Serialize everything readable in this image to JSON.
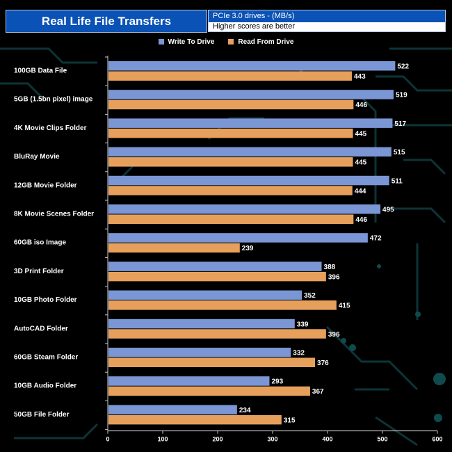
{
  "header": {
    "title": "Real Life File Transfers",
    "subtitle": "PCIe 3.0 drives - (MB/s)",
    "note": "Higher scores are better"
  },
  "colors": {
    "background": "#000000",
    "header_blue": "#0a52b5",
    "write": "#7b96d4",
    "read": "#e6a05c",
    "text": "#ffffff",
    "circuit": "#0f3a3e"
  },
  "chart_data": {
    "type": "bar",
    "orientation": "horizontal",
    "title": "Real Life File Transfers",
    "xlabel": "",
    "ylabel": "",
    "xlim": [
      0,
      600
    ],
    "ticks": [
      0,
      100,
      200,
      300,
      400,
      500,
      600
    ],
    "legend_position": "top-center",
    "categories": [
      "100GB Data File",
      "5GB (1.5bn pixel) image",
      "4K Movie Clips Folder",
      "BluRay Movie",
      "12GB Movie Folder",
      "8K Movie Scenes Folder",
      "60GB iso Image",
      "3D Print Folder",
      "10GB Photo Folder",
      "AutoCAD Folder",
      "60GB Steam Folder",
      "10GB Audio Folder",
      "50GB File Folder"
    ],
    "series": [
      {
        "name": "Write To  Drive",
        "color": "#7b96d4",
        "values": [
          522,
          519,
          517,
          515,
          511,
          495,
          472,
          388,
          352,
          339,
          332,
          293,
          234
        ]
      },
      {
        "name": "Read From  Drive",
        "color": "#e6a05c",
        "values": [
          443,
          446,
          445,
          445,
          444,
          446,
          239,
          396,
          415,
          396,
          376,
          367,
          315
        ]
      }
    ]
  }
}
